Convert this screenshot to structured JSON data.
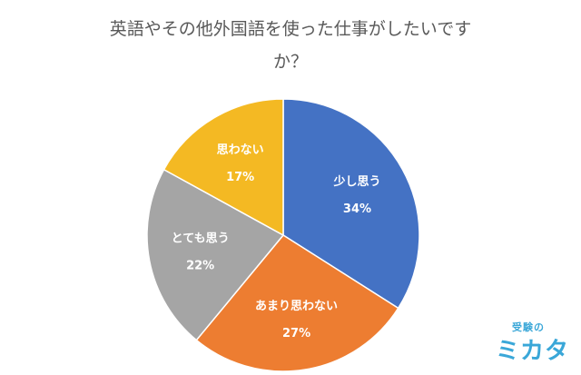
{
  "chart_data": {
    "type": "pie",
    "title_line1": "英語やその他外国語を使った仕事がしたいです",
    "title_line2": "か？",
    "slices": [
      {
        "label": "少し思う",
        "value": 34,
        "value_label": "34%",
        "color": "#4472c4"
      },
      {
        "label": "あまり思わない",
        "value": 27,
        "value_label": "27%",
        "color": "#ed7d31"
      },
      {
        "label": "とても思う",
        "value": 22,
        "value_label": "22%",
        "color": "#a5a5a5"
      },
      {
        "label": "思わない",
        "value": 17,
        "value_label": "17%",
        "color": "#f4b923"
      }
    ]
  },
  "logo": {
    "top_text": "受験の",
    "main_text": "ミカタ",
    "color": "#3aa7d8"
  }
}
